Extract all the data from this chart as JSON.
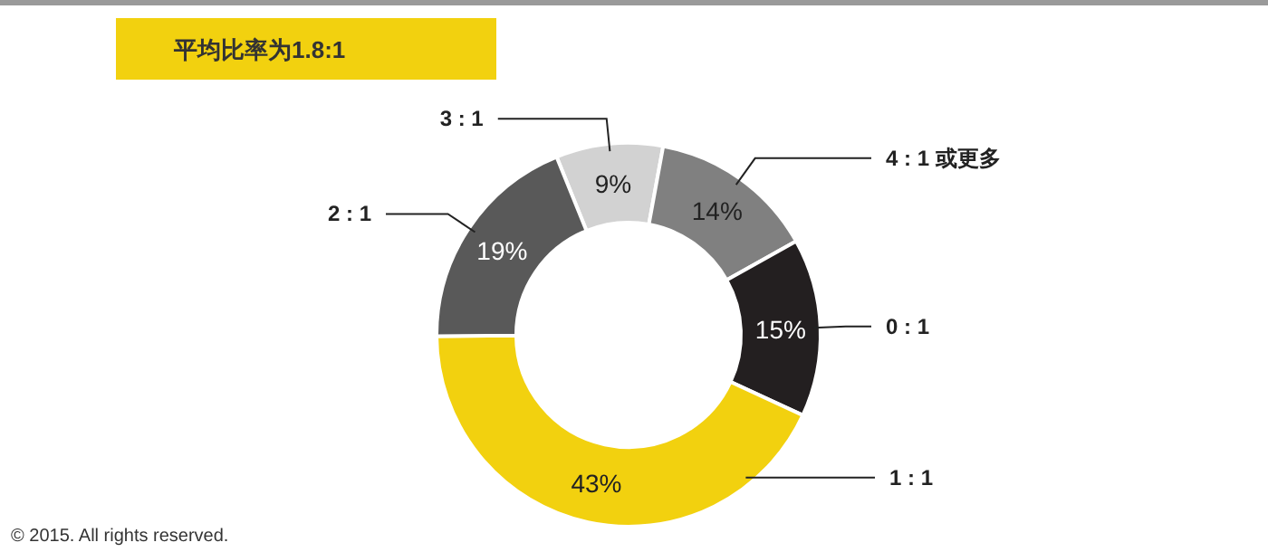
{
  "chart_data": {
    "type": "donut",
    "title": "平均比率为1.8:1",
    "categories": [
      "3 : 1",
      "4 : 1 或更多",
      "0 : 1",
      "1 : 1",
      "2 : 1"
    ],
    "values": [
      9,
      14,
      15,
      43,
      19
    ],
    "value_labels": [
      "9%",
      "14%",
      "15%",
      "43%",
      "19%"
    ],
    "colors": [
      "#d2d2d2",
      "#808080",
      "#231f20",
      "#f2d10f",
      "#595959"
    ],
    "annotations": [
      "© 2015. All rights reserved."
    ]
  }
}
